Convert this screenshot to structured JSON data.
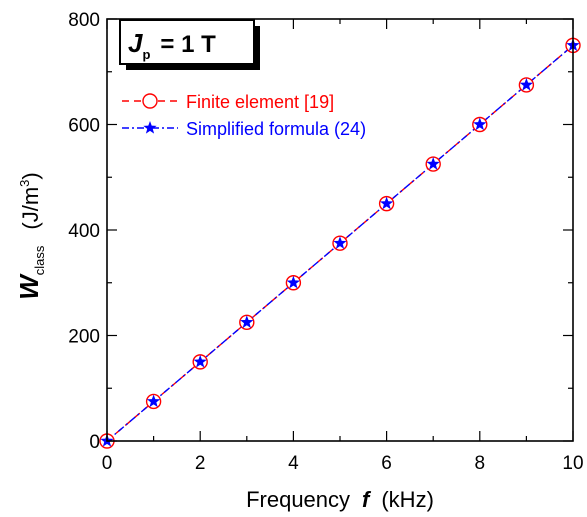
{
  "chart_data": {
    "type": "line",
    "xlabel": {
      "prefix": "Frequency",
      "symbol": "f",
      "unit": "(kHz)"
    },
    "ylabel": {
      "symbol": "W",
      "subscript": "class",
      "unit_prefix": "(J/m",
      "unit_sup": "3",
      "unit_suffix": ")"
    },
    "xlim": [
      0,
      10
    ],
    "ylim": [
      0,
      800
    ],
    "xticks": [
      0,
      2,
      4,
      6,
      8,
      10
    ],
    "yticks": [
      0,
      200,
      400,
      600,
      800
    ],
    "grid": false,
    "legend_position": "top-left",
    "annotation": {
      "symbol": "J",
      "subscript": "p",
      "text": "= 1 T"
    },
    "x": [
      0,
      1,
      2,
      3,
      4,
      5,
      6,
      7,
      8,
      9,
      10
    ],
    "series": [
      {
        "name": "Finite element [19]",
        "color": "#ff0000",
        "marker": "open-circle",
        "line": "dashed",
        "values": [
          0,
          75,
          150,
          225,
          300,
          375,
          450,
          525,
          600,
          675,
          750
        ]
      },
      {
        "name": "Simplified formula (24)",
        "color": "#0000ff",
        "marker": "filled-star",
        "line": "dash-dot",
        "values": [
          0,
          75,
          150,
          225,
          300,
          375,
          450,
          525,
          600,
          675,
          750
        ]
      }
    ]
  }
}
